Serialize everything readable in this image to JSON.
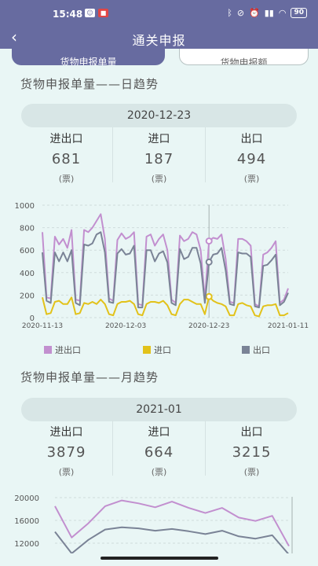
{
  "status_bar": {
    "time": "15:48",
    "battery": "90"
  },
  "navbar": {
    "title": "通关申报",
    "back_icon": "chevron-left-icon"
  },
  "tabs": [
    {
      "label": "货物申报单量",
      "active": true
    },
    {
      "label": "货物申报额",
      "active": false
    }
  ],
  "daily": {
    "section_title": "货物申报单量——日趋势",
    "date": "2020-12-23",
    "stats": [
      {
        "label": "进出口",
        "value": "681",
        "unit": "(票)"
      },
      {
        "label": "进口",
        "value": "187",
        "unit": "(票)"
      },
      {
        "label": "出口",
        "value": "494",
        "unit": "(票)"
      }
    ]
  },
  "monthly": {
    "section_title": "货物申报单量——月趋势",
    "date": "2021-01",
    "stats": [
      {
        "label": "进出口",
        "value": "3879",
        "unit": "(票)"
      },
      {
        "label": "进口",
        "value": "664",
        "unit": "(票)"
      },
      {
        "label": "出口",
        "value": "3215",
        "unit": "(票)"
      }
    ]
  },
  "chart_data": [
    {
      "type": "line",
      "title": "",
      "xlabel": "",
      "ylabel": "",
      "ylim": [
        0,
        1000
      ],
      "yticks": [
        0,
        200,
        400,
        600,
        800,
        1000
      ],
      "xtick_labels": [
        "2020-11-13",
        "2020-12-03",
        "2020-12-23",
        "2021-01-11"
      ],
      "x": [
        "11-13",
        "11-14",
        "11-15",
        "11-16",
        "11-17",
        "11-18",
        "11-19",
        "11-20",
        "11-21",
        "11-22",
        "11-23",
        "11-24",
        "11-25",
        "11-26",
        "11-27",
        "11-28",
        "11-29",
        "11-30",
        "12-01",
        "12-02",
        "12-03",
        "12-04",
        "12-05",
        "12-06",
        "12-07",
        "12-08",
        "12-09",
        "12-10",
        "12-11",
        "12-12",
        "12-13",
        "12-14",
        "12-15",
        "12-16",
        "12-17",
        "12-18",
        "12-19",
        "12-20",
        "12-21",
        "12-22",
        "12-23",
        "12-24",
        "12-25",
        "12-26",
        "12-27",
        "12-28",
        "12-29",
        "12-30",
        "12-31",
        "01-01",
        "01-02",
        "01-03",
        "01-04",
        "01-05",
        "01-06",
        "01-07",
        "01-08",
        "01-09",
        "01-10",
        "01-11"
      ],
      "series": [
        {
          "name": "进出口",
          "color": "#c28fcf",
          "values": [
            760,
            180,
            170,
            720,
            650,
            700,
            620,
            780,
            160,
            150,
            780,
            760,
            800,
            860,
            920,
            700,
            170,
            150,
            690,
            750,
            700,
            720,
            760,
            120,
            110,
            720,
            740,
            640,
            700,
            740,
            600,
            160,
            130,
            730,
            680,
            700,
            760,
            740,
            600,
            160,
            681,
            710,
            700,
            740,
            520,
            140,
            130,
            700,
            700,
            680,
            640,
            120,
            100,
            560,
            580,
            620,
            680,
            130,
            160,
            260
          ]
        },
        {
          "name": "进口",
          "color": "#e2c21a",
          "values": [
            180,
            30,
            40,
            140,
            150,
            120,
            120,
            180,
            30,
            40,
            130,
            120,
            140,
            120,
            160,
            120,
            30,
            20,
            120,
            140,
            140,
            150,
            120,
            30,
            20,
            120,
            140,
            140,
            130,
            150,
            110,
            30,
            20,
            120,
            160,
            160,
            140,
            120,
            120,
            30,
            187,
            150,
            130,
            120,
            100,
            20,
            20,
            120,
            130,
            110,
            100,
            20,
            10,
            100,
            110,
            110,
            120,
            20,
            20,
            40
          ]
        },
        {
          "name": "出口",
          "color": "#7a8396",
          "values": [
            580,
            150,
            130,
            580,
            500,
            580,
            500,
            600,
            130,
            110,
            650,
            640,
            660,
            740,
            760,
            580,
            140,
            130,
            570,
            610,
            560,
            570,
            640,
            90,
            90,
            600,
            600,
            500,
            570,
            590,
            490,
            130,
            110,
            610,
            520,
            540,
            620,
            620,
            480,
            130,
            494,
            560,
            570,
            620,
            420,
            120,
            110,
            580,
            570,
            570,
            540,
            100,
            90,
            460,
            470,
            510,
            560,
            110,
            140,
            220
          ]
        }
      ],
      "selected": "12-23",
      "legend": "bottom"
    },
    {
      "type": "line",
      "title": "",
      "xlabel": "",
      "ylabel": "",
      "yticks": [
        12000,
        16000,
        20000
      ],
      "series": [
        {
          "name": "进出口",
          "color": "#c28fcf",
          "values": [
            18500,
            13000,
            15500,
            18500,
            19500,
            19000,
            18300,
            19300,
            18200,
            17300,
            18200,
            16500,
            15900,
            16800,
            11500
          ]
        },
        {
          "name": "出口",
          "color": "#7a8396",
          "values": [
            14000,
            10200,
            12600,
            14400,
            14800,
            14600,
            14200,
            14500,
            14100,
            13600,
            14200,
            13200,
            12800,
            13400,
            10000
          ]
        }
      ]
    }
  ]
}
